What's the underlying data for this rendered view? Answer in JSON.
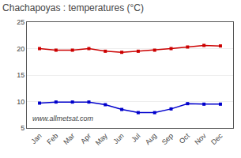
{
  "chart_data": {
    "type": "line",
    "title": "Chachapoyas : temperatures (°C)",
    "categories": [
      "Jan",
      "Feb",
      "Mar",
      "Apr",
      "May",
      "Jun",
      "Jul",
      "Aug",
      "Sep",
      "Oct",
      "Nov",
      "Dec"
    ],
    "series": [
      {
        "color": "#cc0000",
        "values": [
          20.0,
          19.7,
          19.7,
          20.0,
          19.5,
          19.3,
          19.5,
          19.7,
          20.0,
          20.3,
          20.6,
          20.5
        ]
      },
      {
        "color": "#0000cc",
        "values": [
          9.7,
          9.9,
          9.9,
          9.9,
          9.4,
          8.5,
          7.9,
          7.9,
          8.6,
          9.6,
          9.5,
          9.5
        ]
      }
    ],
    "marker": "square",
    "ylim": [
      5,
      25
    ],
    "yticks": [
      5,
      10,
      15,
      20,
      25
    ],
    "grid": true,
    "annotations": [
      "www.allmetsat.com"
    ]
  }
}
